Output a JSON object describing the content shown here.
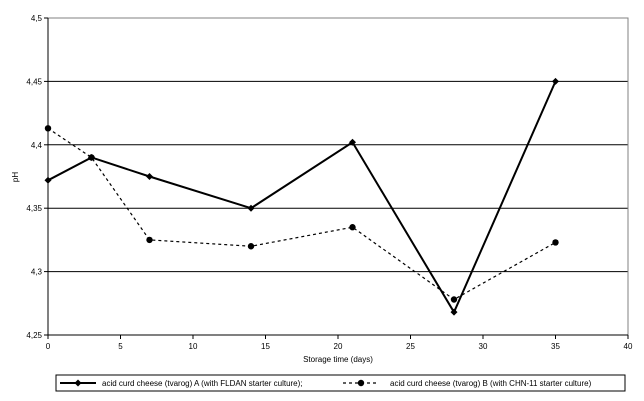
{
  "chart_data": {
    "type": "line",
    "title": "",
    "xlabel": "Storage time (days)",
    "ylabel": "pH",
    "xlim": [
      0,
      40
    ],
    "ylim": [
      4.25,
      4.5
    ],
    "x_ticks": [
      0,
      5,
      10,
      15,
      20,
      25,
      30,
      35,
      40
    ],
    "x_tick_labels": [
      "0",
      "5",
      "10",
      "15",
      "20",
      "25",
      "30",
      "35",
      "40"
    ],
    "y_ticks": [
      4.25,
      4.3,
      4.35,
      4.4,
      4.45,
      4.5
    ],
    "y_tick_labels": [
      "4,25",
      "4,3",
      "4,35",
      "4,4",
      "4,45",
      "4,5"
    ],
    "grid": "horizontal",
    "legend_position": "bottom",
    "series": [
      {
        "name": "acid curd cheese (tvarog) A (with FLDAN starter culture);",
        "style": "solid",
        "marker": "diamond",
        "color": "#000000",
        "x": [
          0,
          3,
          7,
          14,
          21,
          28,
          35
        ],
        "y": [
          4.372,
          4.39,
          4.375,
          4.35,
          4.402,
          4.268,
          4.45
        ]
      },
      {
        "name": "acid curd cheese (tvarog) B (with CHN-11 starter culture)",
        "style": "dashed",
        "marker": "circle",
        "color": "#000000",
        "x": [
          0,
          3,
          7,
          14,
          21,
          28,
          35
        ],
        "y": [
          4.413,
          4.39,
          4.325,
          4.32,
          4.335,
          4.278,
          4.323
        ]
      }
    ]
  }
}
